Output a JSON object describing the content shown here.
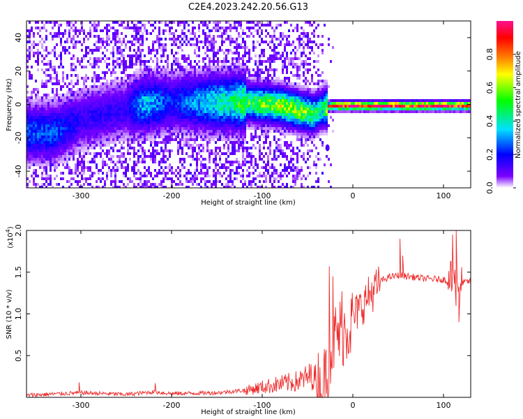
{
  "title": "C2E4.2023.242.20.56.G13",
  "chart_data": [
    {
      "type": "heatmap",
      "description_kind": "spectrogram",
      "xlabel": "Height of straight line (km)",
      "ylabel": "Frequency (Hz)",
      "xlim": [
        -360,
        130
      ],
      "ylim": [
        -50,
        50
      ],
      "x_ticks": [
        -300,
        -200,
        -100,
        0,
        100
      ],
      "x_tick_labels": [
        "-300",
        "-200",
        "-100",
        "0",
        "100"
      ],
      "y_ticks": [
        -40,
        -20,
        0,
        20,
        40
      ],
      "y_tick_labels": [
        "-40",
        "-20",
        "0",
        "20",
        "40"
      ],
      "colorbar": {
        "label": "Normalized spectral amplitude",
        "range": [
          0,
          1
        ],
        "ticks": [
          0.0,
          0.2,
          0.4,
          0.6,
          0.8
        ],
        "tick_labels": [
          "0.0",
          "0.2",
          "0.4",
          "0.6",
          "0.8"
        ],
        "colormap": [
          "#ffffff",
          "#7b00ff",
          "#0000ff",
          "#00e0ff",
          "#00ff00",
          "#ffff00",
          "#ff8000",
          "#ff0000",
          "#ff1090"
        ]
      },
      "ridge": {
        "x": [
          -330,
          -300,
          -250,
          -230,
          -200,
          -150,
          -120,
          -100,
          -80,
          -60,
          -45,
          -35,
          -30,
          -25,
          0,
          50,
          100,
          130
        ],
        "center_freq": [
          -16,
          -8,
          -2,
          1,
          2,
          2,
          2,
          1,
          0,
          -3,
          -5,
          -2,
          -1,
          0,
          0,
          0,
          0,
          0
        ],
        "amplitude": [
          0.25,
          0.15,
          0.15,
          0.35,
          0.2,
          0.4,
          0.5,
          0.55,
          0.6,
          0.6,
          0.5,
          0.4,
          0.6,
          0.9,
          0.95,
          0.95,
          0.95,
          0.9
        ]
      },
      "outlier_spot": {
        "x": -28,
        "freq": -26
      }
    },
    {
      "type": "line",
      "xlabel": "Height of straight line (km)",
      "ylabel": "SNR (10 * v/v)",
      "y_multiplier_label": "(x10",
      "y_multiplier_exp": "4",
      "y_multiplier_close": ")",
      "xlim": [
        -360,
        130
      ],
      "ylim": [
        0,
        2.0
      ],
      "x_ticks": [
        -300,
        -200,
        -100,
        0,
        100
      ],
      "x_tick_labels": [
        "-300",
        "-200",
        "-100",
        "0",
        "100"
      ],
      "y_ticks": [
        0.5,
        1.0,
        1.5,
        2.0
      ],
      "y_tick_labels": [
        "0.5",
        "1.0",
        "1.5",
        "2.0"
      ],
      "line_color": "#ee2a2a",
      "envelope": {
        "x": [
          -360,
          -320,
          -300,
          -250,
          -220,
          -200,
          -150,
          -120,
          -100,
          -80,
          -60,
          -45,
          -38,
          -35,
          -30,
          -25,
          -20,
          -15,
          -10,
          0,
          10,
          20,
          30,
          40,
          50,
          60,
          80,
          100,
          108,
          112,
          116,
          120,
          130
        ],
        "y": [
          0.03,
          0.05,
          0.06,
          0.04,
          0.07,
          0.05,
          0.06,
          0.09,
          0.14,
          0.18,
          0.22,
          0.3,
          0.25,
          0.1,
          0.35,
          0.65,
          0.8,
          0.85,
          0.9,
          1.0,
          1.15,
          1.3,
          1.4,
          1.45,
          1.47,
          1.46,
          1.43,
          1.42,
          1.38,
          1.35,
          1.3,
          1.38,
          1.4
        ]
      },
      "spikes": [
        {
          "x": -302,
          "y": 0.18
        },
        {
          "x": -218,
          "y": 0.17
        },
        {
          "x": -26,
          "y": 1.57
        },
        {
          "x": -22,
          "y": 1.45
        },
        {
          "x": -12,
          "y": 1.27
        },
        {
          "x": 52,
          "y": 1.9
        },
        {
          "x": 55,
          "y": 1.7
        },
        {
          "x": 110,
          "y": 1.95
        },
        {
          "x": 114,
          "y": 2.0
        },
        {
          "x": 117,
          "y": 0.9
        }
      ]
    }
  ]
}
